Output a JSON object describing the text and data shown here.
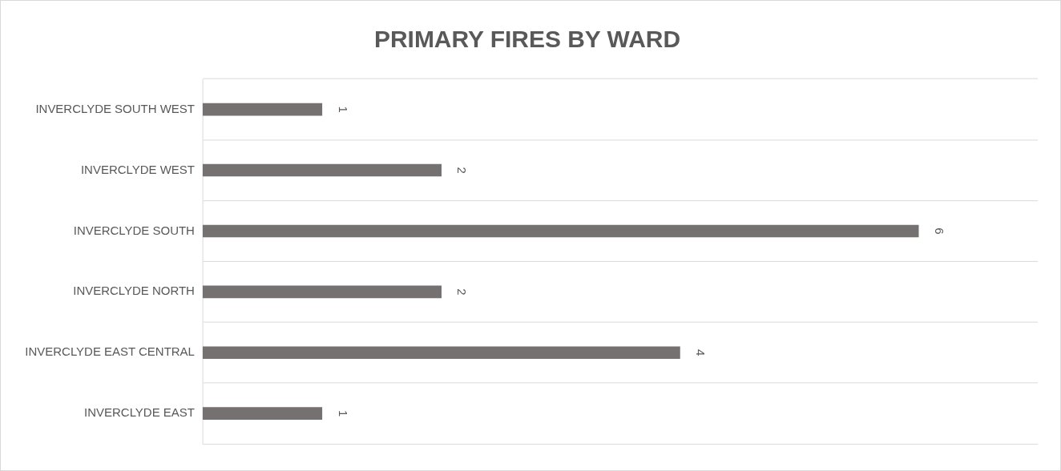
{
  "chart_data": {
    "type": "bar",
    "orientation": "horizontal",
    "title": "PRIMARY FIRES BY WARD",
    "categories": [
      "INVERCLYDE SOUTH WEST",
      "INVERCLYDE WEST",
      "INVERCLYDE SOUTH",
      "INVERCLYDE NORTH",
      "INVERCLYDE EAST CENTRAL",
      "INVERCLYDE EAST"
    ],
    "values": [
      1,
      2,
      6,
      2,
      4,
      1
    ],
    "color": "#767171",
    "xlim": [
      0,
      7
    ],
    "grid": "y",
    "legend": false,
    "data_labels": true,
    "tick_labels": "y"
  }
}
